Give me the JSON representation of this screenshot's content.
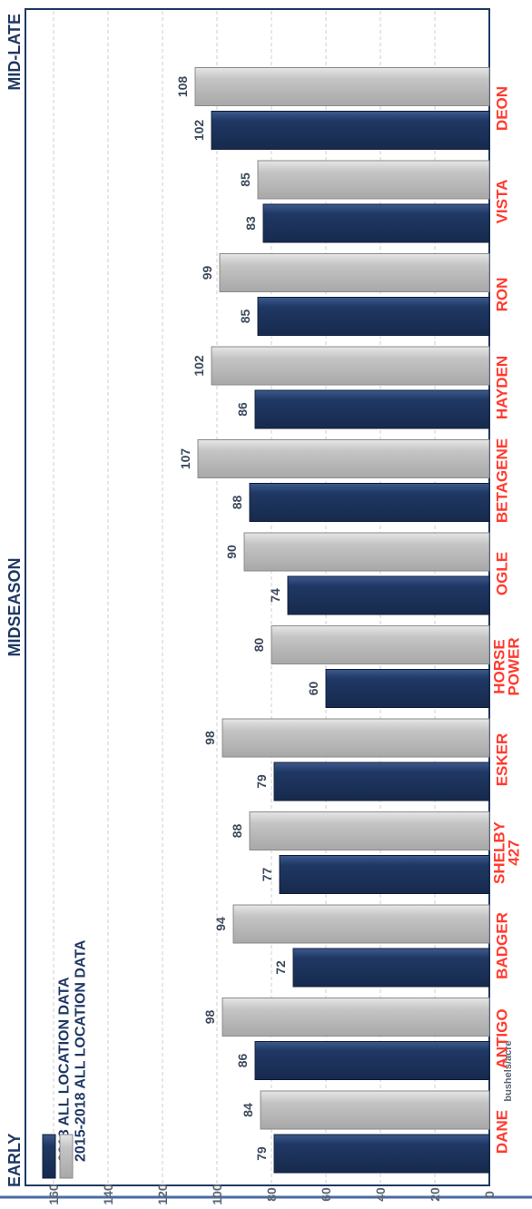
{
  "chart_data": {
    "type": "bar",
    "orientation": "horizontal",
    "ylabel": "bushels/acre",
    "xlim": [
      0,
      170
    ],
    "ticks": [
      0,
      20,
      40,
      60,
      80,
      100,
      120,
      140,
      160
    ],
    "grid": true,
    "legend_position": "top-right",
    "groups": [
      "EARLY",
      "MIDSEASON",
      "MID-LATE"
    ],
    "categories": [
      {
        "label": "DANE",
        "group": "EARLY"
      },
      {
        "label": "ANTIGO",
        "group": "EARLY"
      },
      {
        "label": "BADGER",
        "group": "EARLY"
      },
      {
        "label": "SHELBY 427",
        "group": "MIDSEASON"
      },
      {
        "label": "ESKER",
        "group": "MIDSEASON"
      },
      {
        "label": "HORSE POWER",
        "group": "MIDSEASON"
      },
      {
        "label": "OGLE",
        "group": "MIDSEASON"
      },
      {
        "label": "BETAGENE",
        "group": "MIDSEASON"
      },
      {
        "label": "HAYDEN",
        "group": "MIDSEASON"
      },
      {
        "label": "RON",
        "group": "MIDSEASON"
      },
      {
        "label": "VISTA",
        "group": "MID-LATE"
      },
      {
        "label": "DEON",
        "group": "MID-LATE"
      }
    ],
    "series": [
      {
        "name": "2018 ALL LOCATION DATA",
        "color": "#1f3864",
        "values": [
          79,
          86,
          72,
          77,
          79,
          60,
          74,
          88,
          86,
          85,
          83,
          102
        ]
      },
      {
        "name": "2015-2018 ALL LOCATION DATA",
        "color": "#bfbfbf",
        "values": [
          84,
          98,
          94,
          88,
          98,
          80,
          90,
          107,
          102,
          99,
          85,
          108
        ]
      }
    ],
    "label_color": "#ff3b2f",
    "frame_color": "#1f3864"
  }
}
